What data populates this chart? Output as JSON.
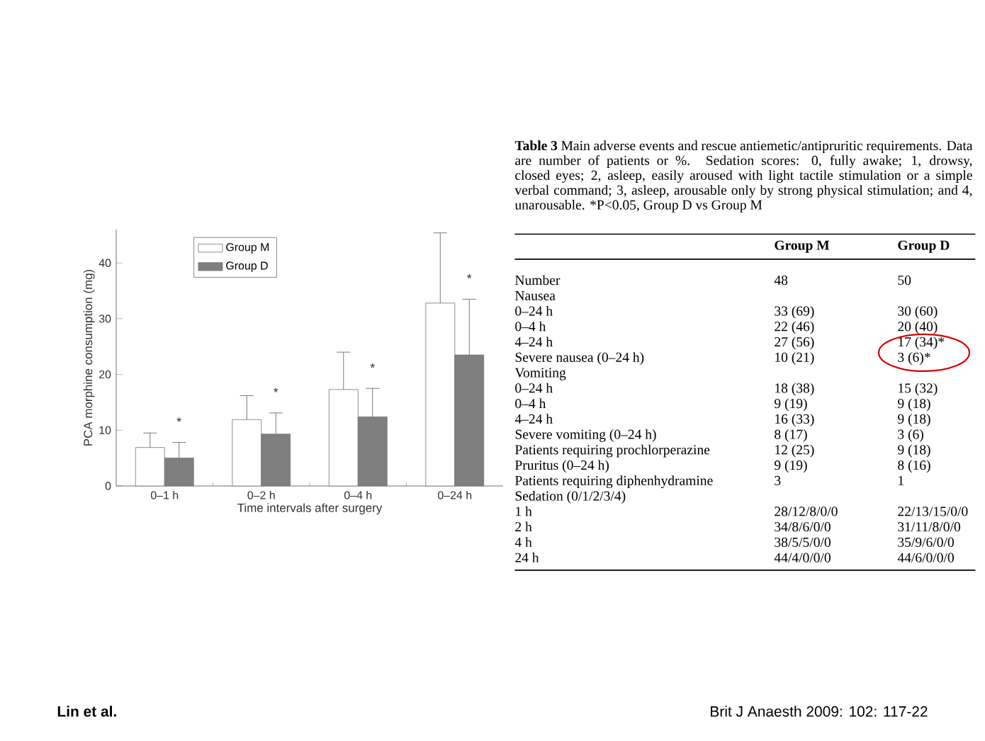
{
  "chart_data": [
    {
      "type": "bar",
      "categories": [
        "0–1 h",
        "0–2 h",
        "0–4 h",
        "0–24 h"
      ],
      "xlabel": "Time intervals after surgery",
      "ylabel": "PCA morphine consumption (mg)",
      "ylim": [
        0,
        46
      ],
      "yticks": [
        0,
        10,
        20,
        30,
        40
      ],
      "legend": "top left",
      "series": [
        {
          "name": "Group M",
          "color": "#ffffff",
          "values": [
            6.9,
            11.9,
            17.3,
            32.8
          ],
          "errors": [
            [
              6.9,
              9.5
            ],
            [
              11.9,
              16.2
            ],
            [
              17.3,
              24.0
            ],
            [
              32.8,
              45.4
            ]
          ]
        },
        {
          "name": "Group D",
          "color": "#7f7f7f",
          "values": [
            5.0,
            9.3,
            12.4,
            23.5
          ],
          "errors": [
            [
              5.0,
              7.8
            ],
            [
              9.3,
              13.1
            ],
            [
              12.4,
              17.5
            ],
            [
              23.5,
              33.5
            ]
          ]
        }
      ],
      "annotations": [
        "*",
        "*",
        "*",
        "*"
      ]
    },
    {
      "type": "other",
      "title": "**Table 3** Main adverse events and rescue antiemetic/antipruritic requirements. Data are number of patients or %. Sedation scores: 0, fully awake; 1, drowsy, closed eyes; 2, asleep, easily aroused with light tactile stimulation or a simple verbal command; 3, asleep, arousable only by strong physical stimulation; and 4, unarousable. *P<0.05, Group D vs Group M",
      "categories": [
        "Group M",
        "Group D"
      ],
      "y_categories": [
        "Number",
        "Nausea",
        "0–24 h",
        "0–4 h",
        "4–24 h",
        "Severe nausea (0–24 h)",
        "Vomiting",
        "0–24 h",
        "0–4 h",
        "4–24 h",
        "Severe vomiting (0–24 h)",
        "Patients requiring prochlorperazine",
        "Pruritus (0–24 h)",
        "Patients requiring diphenhydramine",
        "Sedation (0/1/2/3/4)",
        "1 h",
        "2 h",
        "4 h",
        "24 h"
      ],
      "cell_labels": [
        [
          "48",
          "50"
        ],
        [
          null,
          null
        ],
        [
          "33 (69)",
          "30 (60)"
        ],
        [
          "22 (46)",
          "20 (40)"
        ],
        [
          "27 (56)",
          "17 (34)*"
        ],
        [
          "10 (21)",
          "3 (6)*"
        ],
        [
          null,
          null
        ],
        [
          "18 (38)",
          "15 (32)"
        ],
        [
          "9 (19)",
          "9 (18)"
        ],
        [
          "16 (33)",
          "9 (18)"
        ],
        [
          "8 (17)",
          "3 (6)"
        ],
        [
          "12 (25)",
          "9 (18)"
        ],
        [
          "9 (19)",
          "8 (16)"
        ],
        [
          "3",
          "1"
        ],
        [
          null,
          null
        ],
        [
          "28/12/8/0/0",
          "22/13/15/0/0"
        ],
        [
          "34/8/6/0/0",
          "31/11/8/0/0"
        ],
        [
          "38/5/5/0/0",
          "35/9/6/0/0"
        ],
        [
          "44/4/0/0/0",
          "44/6/0/0/0"
        ]
      ],
      "annotations": [
        "Lin et al.",
        "Brit J Anaesth 2009: 102: 117-22"
      ]
    }
  ]
}
